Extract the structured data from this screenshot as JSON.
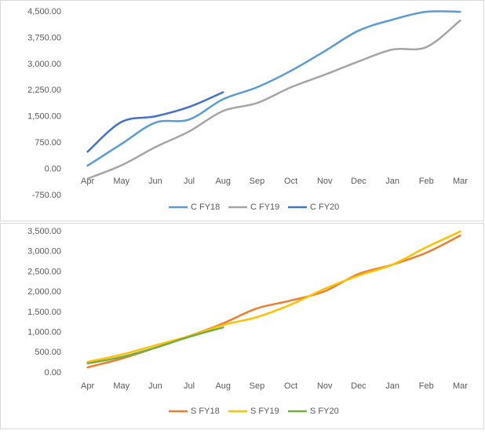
{
  "chart_data": [
    {
      "type": "line",
      "categories": [
        "Apr",
        "May",
        "Jun",
        "Jul",
        "Aug",
        "Sep",
        "Oct",
        "Nov",
        "Dec",
        "Jan",
        "Feb",
        "Mar"
      ],
      "ylim": [
        -750,
        4500
      ],
      "yticks": [
        {
          "value": -750,
          "label": "-750.00"
        },
        {
          "value": 0,
          "label": "0.00"
        },
        {
          "value": 750,
          "label": "750.00"
        },
        {
          "value": 1500,
          "label": "1,500.00"
        },
        {
          "value": 2250,
          "label": "2,250.00"
        },
        {
          "value": 3000,
          "label": "3,000.00"
        },
        {
          "value": 3750,
          "label": "3,750.00"
        },
        {
          "value": 4500,
          "label": "4,500.00"
        }
      ],
      "legend": "bottom",
      "series": [
        {
          "name": "C FY18",
          "color": "#5b9bd5",
          "values": [
            100,
            720,
            1330,
            1420,
            2000,
            2340,
            2810,
            3375,
            3960,
            4275,
            4500,
            4500
          ]
        },
        {
          "name": "C FY19",
          "color": "#a5a5a5",
          "values": [
            -270,
            110,
            630,
            1080,
            1665,
            1890,
            2340,
            2700,
            3080,
            3420,
            3490,
            4250
          ]
        },
        {
          "name": "C FY20",
          "color": "#4472c4",
          "values": [
            500,
            1350,
            1510,
            1780,
            2200,
            null,
            null,
            null,
            null,
            null,
            null,
            null
          ]
        }
      ]
    },
    {
      "type": "line",
      "categories": [
        "Apr",
        "May",
        "Jun",
        "Jul",
        "Aug",
        "Sep",
        "Oct",
        "Nov",
        "Dec",
        "Jan",
        "Feb",
        "Mar"
      ],
      "ylim": [
        0,
        3500
      ],
      "yticks": [
        {
          "value": 0,
          "label": "0.00"
        },
        {
          "value": 500,
          "label": "500.00"
        },
        {
          "value": 1000,
          "label": "1,000.00"
        },
        {
          "value": 1500,
          "label": "1,500.00"
        },
        {
          "value": 2000,
          "label": "2,000.00"
        },
        {
          "value": 2500,
          "label": "2,500.00"
        },
        {
          "value": 3000,
          "label": "3,000.00"
        },
        {
          "value": 3500,
          "label": "3,500.00"
        }
      ],
      "legend": "bottom",
      "series": [
        {
          "name": "S FY18",
          "color": "#ed7d31",
          "values": [
            135,
            350,
            620,
            910,
            1225,
            1595,
            1790,
            2020,
            2450,
            2680,
            2975,
            3400
          ]
        },
        {
          "name": "S FY19",
          "color": "#ffc000",
          "values": [
            270,
            450,
            680,
            910,
            1185,
            1380,
            1690,
            2080,
            2410,
            2680,
            3110,
            3500
          ]
        },
        {
          "name": "S FY20",
          "color": "#70ad47",
          "values": [
            230,
            390,
            620,
            890,
            1125,
            null,
            null,
            null,
            null,
            null,
            null,
            null
          ]
        }
      ]
    }
  ]
}
